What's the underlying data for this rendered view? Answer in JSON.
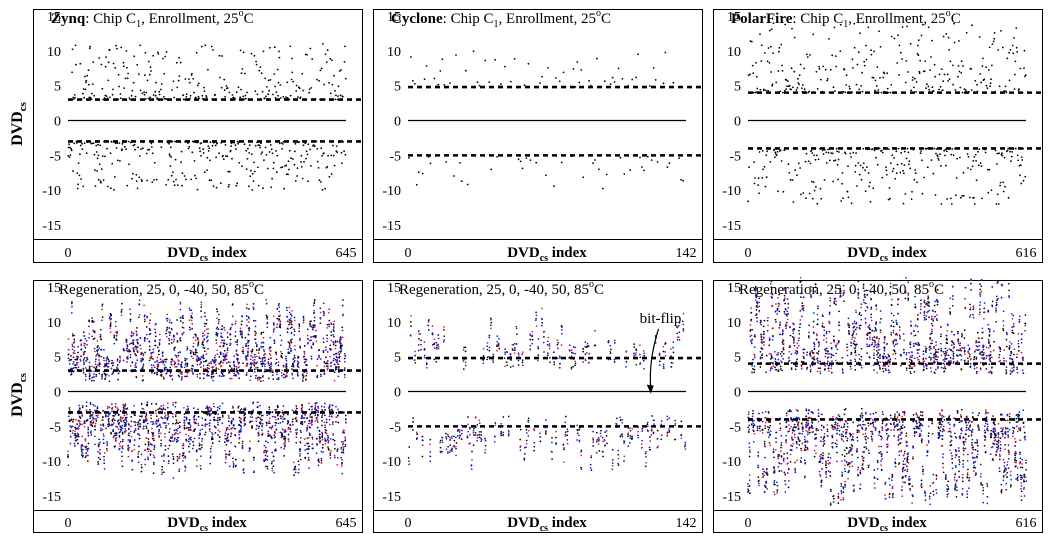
{
  "figure": {
    "ylabel_main": "DVD",
    "ylabel_sub": "cs",
    "xlabel_main": "DVD",
    "xlabel_sub": "cs",
    "xlabel_suffix": " index",
    "colors": {
      "enroll": "#000000",
      "regen": [
        "#000000",
        "#1515e8",
        "#e81515"
      ]
    }
  },
  "chart_data": [
    {
      "type": "scatter",
      "panel": "enrollment",
      "title_bold": "Zynq",
      "title_rest": ": Chip C",
      "title_sub": "1",
      "title_tail": ", Enrollment, 25",
      "title_sup": "o",
      "title_end": "C",
      "xmin_label": "0",
      "xmax_label": "645",
      "xlim": [
        0,
        645
      ],
      "ylim": [
        -17,
        16
      ],
      "yticks": [
        15,
        10,
        5,
        0,
        -5,
        -10,
        -15
      ],
      "thresholds": [
        3,
        -3
      ],
      "n_points": 645,
      "positive_range": [
        3,
        11
      ],
      "negative_range": [
        -3,
        -10
      ],
      "legend": "none",
      "grid": false
    },
    {
      "type": "scatter",
      "panel": "enrollment",
      "title_bold": "Cyclone",
      "title_rest": ": Chip C",
      "title_sub": "1",
      "title_tail": ", Enrollment, 25",
      "title_sup": "o",
      "title_end": "C",
      "xmin_label": "0",
      "xmax_label": "142",
      "xlim": [
        0,
        142
      ],
      "ylim": [
        -17,
        16
      ],
      "yticks": [
        15,
        10,
        5,
        0,
        -5,
        -10,
        -15
      ],
      "thresholds": [
        4.8,
        -5
      ],
      "n_points": 142,
      "positive_range": [
        4.8,
        10
      ],
      "negative_range": [
        -5,
        -10
      ],
      "legend": "none",
      "grid": false
    },
    {
      "type": "scatter",
      "panel": "enrollment",
      "title_bold": "PolarFire",
      "title_rest": ": Chip C",
      "title_sub": "1",
      "title_tail": ", Enrollment, 25",
      "title_sup": "o",
      "title_end": "C",
      "xmin_label": "0",
      "xmax_label": "616",
      "xlim": [
        0,
        616
      ],
      "ylim": [
        -17,
        16
      ],
      "yticks": [
        15,
        10,
        5,
        0,
        -5,
        -10,
        -15
      ],
      "thresholds": [
        4,
        -4
      ],
      "n_points": 616,
      "positive_range": [
        4,
        14
      ],
      "negative_range": [
        -4,
        -12
      ],
      "legend": "none",
      "grid": false
    },
    {
      "type": "scatter",
      "panel": "regeneration",
      "title_text": "Regeneration, 25, 0, -40, 50, 85",
      "title_sup": "o",
      "title_end": "C",
      "xmin_label": "0",
      "xmax_label": "645",
      "xlim": [
        0,
        645
      ],
      "ylim": [
        -17,
        16
      ],
      "yticks": [
        15,
        10,
        5,
        0,
        -5,
        -10,
        -15
      ],
      "thresholds": [
        3,
        -3
      ],
      "n_points": 645,
      "positive_range": [
        3,
        12
      ],
      "negative_range": [
        -3,
        -11
      ],
      "legend": "none",
      "grid": false
    },
    {
      "type": "scatter",
      "panel": "regeneration",
      "title_text": "Regeneration, 25, 0, -40, 50, 85",
      "title_sup": "o",
      "title_end": "C",
      "xmin_label": "0",
      "xmax_label": "142",
      "xlim": [
        0,
        142
      ],
      "ylim": [
        -17,
        16
      ],
      "yticks": [
        15,
        10,
        5,
        0,
        -5,
        -10,
        -15
      ],
      "thresholds": [
        4.8,
        -5
      ],
      "n_points": 142,
      "positive_range": [
        4.8,
        11
      ],
      "negative_range": [
        -5,
        -10
      ],
      "annotation": {
        "text": "bit-flip",
        "arrow_from": [
          130,
          9
        ],
        "arrow_to": [
          124,
          -0.3
        ]
      },
      "legend": "none",
      "grid": false
    },
    {
      "type": "scatter",
      "panel": "regeneration",
      "title_text": "Regeneration, 25, 0, -40, 50, 85",
      "title_sup": "o",
      "title_end": "C",
      "xmin_label": "0",
      "xmax_label": "616",
      "xlim": [
        0,
        616
      ],
      "ylim": [
        -17,
        16
      ],
      "yticks": [
        15,
        10,
        5,
        0,
        -5,
        -10,
        -15
      ],
      "thresholds": [
        4,
        -4
      ],
      "n_points": 616,
      "positive_range": [
        4,
        15
      ],
      "negative_range": [
        -4,
        -15
      ],
      "legend": "none",
      "grid": false
    }
  ]
}
